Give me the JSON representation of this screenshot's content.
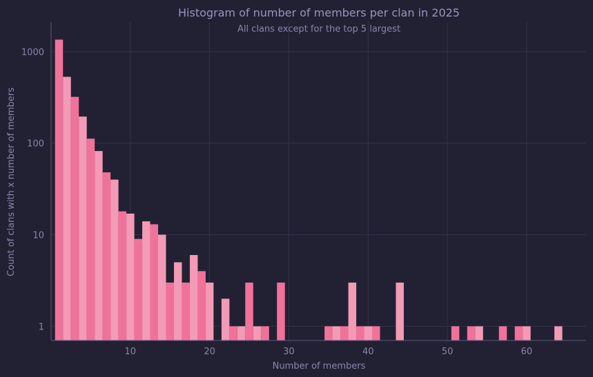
{
  "chart_data": {
    "type": "bar",
    "title": "Histogram of number of members per clan in 2025",
    "subtitle": "All clans except for the top 5 largest",
    "xlabel": "Number of members",
    "ylabel": "Count of clans with x number of members",
    "yscale": "log",
    "ylim": [
      0.7,
      2100
    ],
    "xlim": [
      0,
      67.5
    ],
    "xticks": [
      10,
      20,
      30,
      40,
      50,
      60
    ],
    "yticks": [
      1,
      10,
      100,
      1000
    ],
    "grid": true,
    "bin_width": 1,
    "x": [
      1,
      2,
      3,
      4,
      5,
      6,
      7,
      8,
      9,
      10,
      11,
      12,
      13,
      14,
      15,
      16,
      17,
      18,
      19,
      20,
      22,
      23,
      24,
      25,
      26,
      27,
      29,
      35,
      36,
      37,
      38,
      39,
      40,
      41,
      44,
      51,
      53,
      54,
      57,
      59,
      60,
      64
    ],
    "values": [
      1350,
      530,
      320,
      195,
      112,
      82,
      48,
      40,
      18,
      17,
      9,
      14,
      13,
      10,
      3,
      5,
      3,
      6,
      4,
      3,
      2,
      1,
      1,
      3,
      1,
      1,
      3,
      1,
      1,
      1,
      3,
      1,
      1,
      1,
      3,
      1,
      1,
      1,
      1,
      1,
      1,
      1
    ],
    "colors": [
      "#f0729a",
      "#f29ab6"
    ]
  }
}
